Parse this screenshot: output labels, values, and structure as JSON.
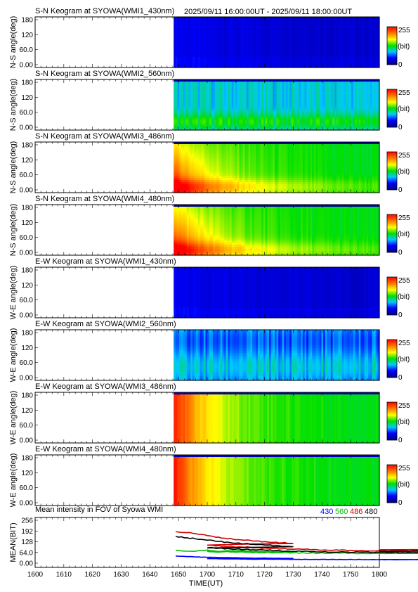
{
  "figure": {
    "date_range": "2025/09/11 16:00:00UT - 2025/09/11 18:00:00UT",
    "x_axis_label": "TIME(UT)",
    "x_ticks": [
      "1600",
      "1610",
      "1620",
      "1630",
      "1640",
      "1650",
      "1700",
      "1710",
      "1720",
      "1730",
      "1740",
      "1750",
      "1800"
    ],
    "colorbar": {
      "max_label": "255",
      "unit_label": "(bit)",
      "min_label": "0"
    }
  },
  "chart_data": [
    {
      "type": "heatmap",
      "title": "S-N Keogram at SYOWA(WMI1_430nm)",
      "ylabel": "N-S angle(deg)",
      "yticks": [
        "180",
        "120",
        "60.0",
        "0.00"
      ],
      "ylim": [
        0,
        180
      ],
      "xlim": [
        1600,
        1800
      ],
      "data_start": 1648.5,
      "clim": [
        0,
        255
      ],
      "profile": "dim",
      "colormap": "rainbow"
    },
    {
      "type": "heatmap",
      "title": "S-N Keogram at SYOWA(WMI2_560nm)",
      "ylabel": "N-S angle(deg)",
      "yticks": [
        "180",
        "120",
        "60.0",
        "0.00"
      ],
      "ylim": [
        0,
        180
      ],
      "xlim": [
        1600,
        1800
      ],
      "data_start": 1648.5,
      "clim": [
        0,
        255
      ],
      "profile": "green_sn",
      "colormap": "rainbow"
    },
    {
      "type": "heatmap",
      "title": "S-N Keogram at SYOWA(WMI3_486nm)",
      "ylabel": "N-S angle(deg)",
      "yticks": [
        "180",
        "120",
        "60.0",
        "0.00"
      ],
      "ylim": [
        0,
        180
      ],
      "xlim": [
        1600,
        1800
      ],
      "data_start": 1648.5,
      "clim": [
        0,
        255
      ],
      "profile": "twilight_sn",
      "colormap": "rainbow"
    },
    {
      "type": "heatmap",
      "title": "S-N Keogram at SYOWA(WMI4_480nm)",
      "ylabel": "N-S angle(deg)",
      "yticks": [
        "180",
        "120",
        "60.0",
        "0.00"
      ],
      "ylim": [
        0,
        180
      ],
      "xlim": [
        1600,
        1800
      ],
      "data_start": 1648.5,
      "clim": [
        0,
        255
      ],
      "profile": "twilight_sn",
      "colormap": "rainbow"
    },
    {
      "type": "heatmap",
      "title": "E-W Keogram at SYOWA(WMI1_430nm)",
      "ylabel": "W-E angle(deg)",
      "yticks": [
        "180",
        "120",
        "60.0",
        "0.00"
      ],
      "ylim": [
        0,
        180
      ],
      "xlim": [
        1600,
        1800
      ],
      "data_start": 1648.5,
      "clim": [
        0,
        255
      ],
      "profile": "dim",
      "colormap": "rainbow"
    },
    {
      "type": "heatmap",
      "title": "E-W Keogram at SYOWA(WMI2_560nm)",
      "ylabel": "W-E angle(deg)",
      "yticks": [
        "180",
        "120",
        "60.0",
        "0.00"
      ],
      "ylim": [
        0,
        180
      ],
      "xlim": [
        1600,
        1800
      ],
      "data_start": 1648.5,
      "clim": [
        0,
        255
      ],
      "profile": "green_ew",
      "colormap": "rainbow"
    },
    {
      "type": "heatmap",
      "title": "E-W Keogram at SYOWA(WMI3_486nm)",
      "ylabel": "W-E angle(deg)",
      "yticks": [
        "180",
        "120",
        "60.0",
        "0.00"
      ],
      "ylim": [
        0,
        180
      ],
      "xlim": [
        1600,
        1800
      ],
      "data_start": 1648.5,
      "clim": [
        0,
        255
      ],
      "profile": "twilight_ew",
      "colormap": "rainbow"
    },
    {
      "type": "heatmap",
      "title": "E-W Keogram at SYOWA(WMI4_480nm)",
      "ylabel": "W-E angle(deg)",
      "yticks": [
        "180",
        "120",
        "60.0",
        "0.00"
      ],
      "ylim": [
        0,
        180
      ],
      "xlim": [
        1600,
        1800
      ],
      "data_start": 1648.5,
      "clim": [
        0,
        255
      ],
      "profile": "twilight_ew",
      "colormap": "rainbow"
    },
    {
      "type": "line",
      "title": "Mean intensity in FOV of Syowa WMI",
      "ylabel": "MEAN(BIT)",
      "yticks": [
        "256",
        "192",
        "128",
        "64.0",
        "0.00"
      ],
      "ylim": [
        0,
        256
      ],
      "xlim": [
        1600,
        1800
      ],
      "series": [
        {
          "name": "430",
          "color": "#0000ff",
          "x": [
            1649,
            1655,
            1660,
            1665,
            1670,
            1680,
            1690,
            1700,
            1710,
            1720,
            1730,
            1740,
            1750,
            1760,
            1770,
            1780,
            1790,
            1800
          ],
          "y": [
            42,
            38,
            35,
            33,
            32,
            30,
            28,
            27,
            25,
            24,
            23,
            22,
            22,
            21,
            21,
            22,
            22,
            22
          ]
        },
        {
          "name": "560",
          "color": "#00c000",
          "x": [
            1649,
            1655,
            1660,
            1665,
            1670,
            1680,
            1690,
            1700,
            1710,
            1720,
            1730,
            1740,
            1750,
            1760,
            1770,
            1780,
            1790,
            1800
          ],
          "y": [
            75,
            70,
            78,
            72,
            74,
            70,
            68,
            70,
            66,
            64,
            62,
            60,
            60,
            58,
            62,
            56,
            60,
            58
          ]
        },
        {
          "name": "486",
          "color": "#d00000",
          "x": [
            1649,
            1655,
            1660,
            1665,
            1670,
            1680,
            1690,
            1700,
            1710,
            1720,
            1730,
            1740,
            1750,
            1760,
            1770,
            1780,
            1790,
            1800
          ],
          "y": [
            190,
            178,
            165,
            152,
            142,
            128,
            118,
            108,
            98,
            90,
            84,
            80,
            76,
            74,
            74,
            76,
            78,
            80
          ]
        },
        {
          "name": "480",
          "color": "#000000",
          "x": [
            1649,
            1655,
            1660,
            1665,
            1670,
            1680,
            1690,
            1700,
            1710,
            1720,
            1730,
            1740,
            1750,
            1760,
            1770,
            1780,
            1790,
            1800
          ],
          "y": [
            160,
            148,
            138,
            128,
            120,
            108,
            100,
            92,
            84,
            78,
            72,
            68,
            66,
            64,
            64,
            66,
            68,
            70
          ]
        }
      ]
    }
  ]
}
